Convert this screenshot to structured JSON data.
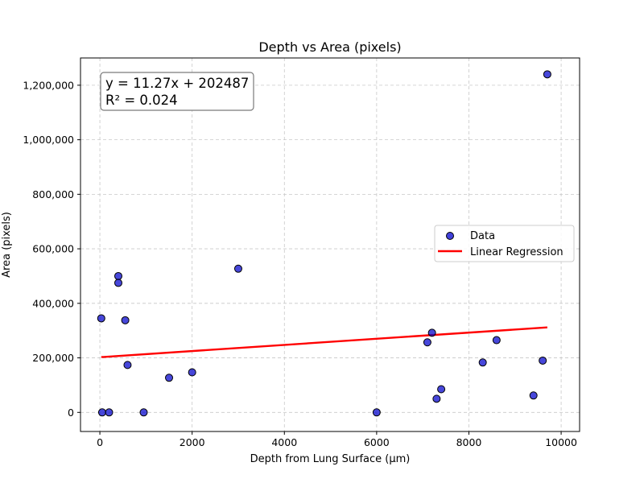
{
  "chart_data": {
    "type": "scatter",
    "title": "Depth vs Area (pixels)",
    "xlabel": "Depth from Lung Surface (µm)",
    "ylabel": "Area (pixels)",
    "xlim": [
      -420,
      10400
    ],
    "ylim": [
      -70000,
      1300000
    ],
    "xticks": [
      0,
      2000,
      4000,
      6000,
      8000,
      10000
    ],
    "xtick_labels": [
      "0",
      "2000",
      "4000",
      "6000",
      "8000",
      "10000"
    ],
    "yticks": [
      0,
      200000,
      400000,
      600000,
      800000,
      1000000,
      1200000
    ],
    "ytick_labels": [
      "0",
      "200,000",
      "400,000",
      "600,000",
      "800,000",
      "1,000,000",
      "1,200,000"
    ],
    "grid": true,
    "legend_position": "center-right",
    "series": [
      {
        "name": "Data",
        "kind": "scatter",
        "color": "#0000cc",
        "points": [
          {
            "x": 30,
            "y": 345000
          },
          {
            "x": 50,
            "y": 0
          },
          {
            "x": 200,
            "y": 0
          },
          {
            "x": 400,
            "y": 500000
          },
          {
            "x": 400,
            "y": 475000
          },
          {
            "x": 550,
            "y": 338000
          },
          {
            "x": 600,
            "y": 174000
          },
          {
            "x": 950,
            "y": 0
          },
          {
            "x": 1500,
            "y": 127000
          },
          {
            "x": 2000,
            "y": 147000
          },
          {
            "x": 3000,
            "y": 527000
          },
          {
            "x": 6000,
            "y": 0
          },
          {
            "x": 7100,
            "y": 257000
          },
          {
            "x": 7200,
            "y": 292000
          },
          {
            "x": 7300,
            "y": 50000
          },
          {
            "x": 7400,
            "y": 85000
          },
          {
            "x": 8300,
            "y": 183000
          },
          {
            "x": 8600,
            "y": 265000
          },
          {
            "x": 9400,
            "y": 62000
          },
          {
            "x": 9600,
            "y": 190000
          },
          {
            "x": 9700,
            "y": 1240000
          }
        ]
      },
      {
        "name": "Linear Regression",
        "kind": "line",
        "color": "#ff0000",
        "points": [
          {
            "x": 30,
            "y": 202825
          },
          {
            "x": 9700,
            "y": 311806
          }
        ]
      }
    ],
    "annotations": {
      "equation": "y = 11.27x + 202487",
      "r_squared": "R² = 0.024"
    }
  }
}
